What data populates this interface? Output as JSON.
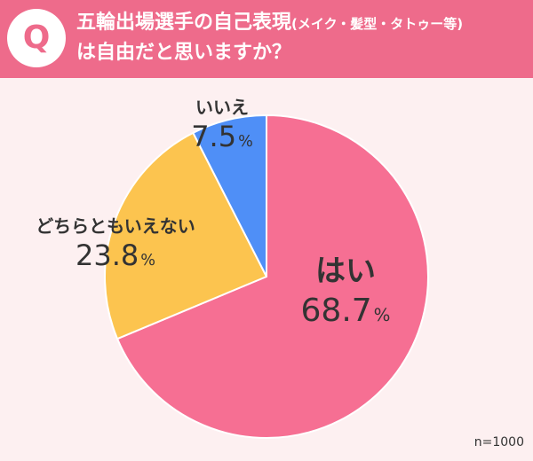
{
  "header": {
    "q_letter": "Q",
    "title_line1_main": "五輪出場選手の自己表現",
    "title_line1_paren": "(メイク・髪型・タトゥー等)",
    "title_line2": "は自由だと思いますか？"
  },
  "chart_data": {
    "type": "pie",
    "start_angle_deg": 0,
    "direction": "clockwise",
    "slices": [
      {
        "name": "はい",
        "value": 68.7,
        "value_label": "68.7",
        "unit": "%",
        "color": "#f66f93"
      },
      {
        "name": "どちらともいえない",
        "value": 23.8,
        "value_label": "23.8",
        "unit": "%",
        "color": "#fcc44f"
      },
      {
        "name": "いいえ",
        "value": 7.5,
        "value_label": "7.5",
        "unit": "%",
        "color": "#4f8ff7"
      }
    ]
  },
  "footer": {
    "sample_size": "n=1000"
  },
  "colors": {
    "header": "#ee6b8b",
    "background": "#fdf0f1"
  }
}
